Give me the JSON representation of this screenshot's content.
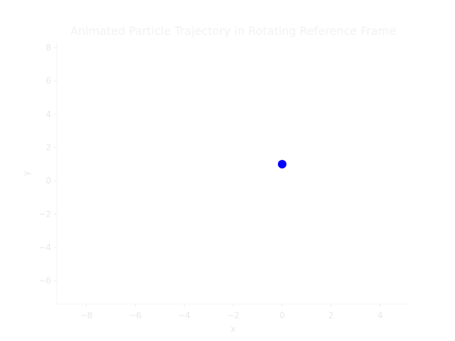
{
  "chart_data": {
    "type": "scatter",
    "title": "Animated Particle Trajectory in Rotating Reference Frame",
    "xlabel": "x",
    "ylabel": "y",
    "xlim": [
      -9.2,
      5.2
    ],
    "ylim": [
      -7.4,
      8.3
    ],
    "xticks": [
      -8,
      -6,
      -4,
      -2,
      0,
      2,
      4
    ],
    "xtick_labels": [
      "−8",
      "−6",
      "−4",
      "−2",
      "0",
      "2",
      "4"
    ],
    "yticks": [
      -6,
      -4,
      -2,
      0,
      2,
      4,
      6,
      8
    ],
    "ytick_labels": [
      "−6",
      "−4",
      "−2",
      "0",
      "2",
      "4",
      "6",
      "8"
    ],
    "grid": false,
    "series": [
      {
        "points": [
          {
            "x": 0.0,
            "y": 1.0
          }
        ],
        "color": "#0000ff"
      }
    ]
  }
}
